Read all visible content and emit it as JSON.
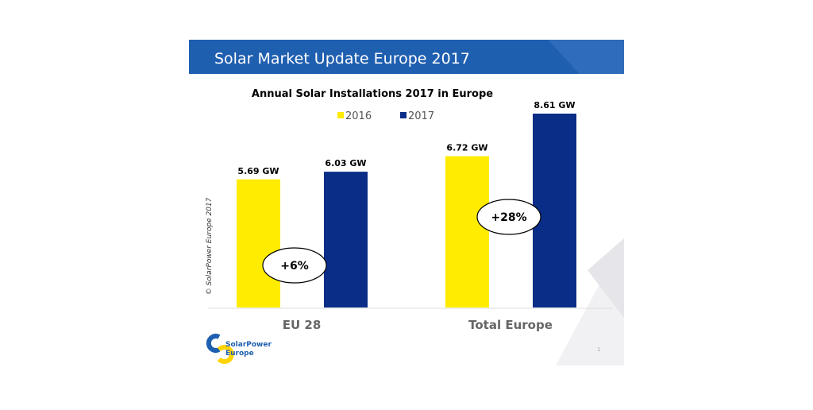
{
  "slide": {
    "header_title": "Solar Market Update Europe 2017",
    "copyright": "© SolarPower Europe 2017",
    "logo_text_1": "SolarPower",
    "logo_text_2": "Europe",
    "page_number": "1"
  },
  "colors": {
    "header": "#1f5fb0",
    "y2016": "#ffec00",
    "y2017": "#0a2d87"
  },
  "chart_data": {
    "type": "bar",
    "title": "Annual Solar Installations 2017 in Europe",
    "categories": [
      "EU 28",
      "Total Europe"
    ],
    "series": [
      {
        "name": "2016",
        "values": [
          5.69,
          6.72
        ],
        "labels": [
          "5.69 GW",
          "6.72 GW"
        ]
      },
      {
        "name": "2017",
        "values": [
          6.03,
          8.61
        ],
        "labels": [
          "6.03 GW",
          "8.61 GW"
        ]
      }
    ],
    "annotations": [
      "+6%",
      "+28%"
    ],
    "unit": "GW",
    "ylim": [
      0,
      8.61
    ],
    "legend": "top-center",
    "grid": false
  }
}
